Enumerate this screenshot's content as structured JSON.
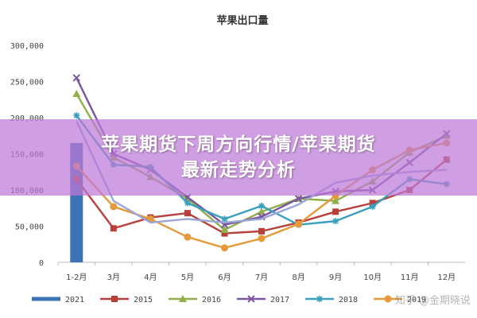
{
  "chart_data": {
    "type": "line",
    "title": "苹果出口量",
    "categories": [
      "1-2月",
      "3月",
      "4月",
      "5月",
      "6月",
      "7月",
      "8月",
      "9月",
      "10月",
      "11月",
      "12月"
    ],
    "ylim": [
      0,
      300000
    ],
    "yticks": [
      "0",
      "50,000",
      "100,000",
      "150,000",
      "200,000",
      "250,000",
      "300,000"
    ],
    "ytick_values": [
      0,
      50000,
      100000,
      150000,
      200000,
      250000,
      300000
    ],
    "grid": false,
    "legend_position": "bottom",
    "series": [
      {
        "name": "2021",
        "render": "bar",
        "color": "#3d73b5",
        "values": [
          165000,
          null,
          null,
          null,
          null,
          null,
          null,
          null,
          null,
          null,
          null
        ]
      },
      {
        "name": "2015",
        "color": "#b8403a",
        "marker": "square",
        "values": [
          115000,
          47000,
          62000,
          68000,
          40000,
          43000,
          55000,
          70000,
          82000,
          100000,
          142000
        ]
      },
      {
        "name": "2016",
        "color": "#8fb04a",
        "marker": "triangle",
        "values": [
          233000,
          145000,
          118000,
          88000,
          45000,
          70000,
          88000,
          85000,
          112000,
          152000,
          175000
        ]
      },
      {
        "name": "2017",
        "color": "#7a55a0",
        "marker": "x",
        "values": [
          255000,
          150000,
          128000,
          90000,
          52000,
          63000,
          88000,
          98000,
          100000,
          138000,
          178000
        ]
      },
      {
        "name": "2018",
        "color": "#3aa0bd",
        "marker": "star",
        "values": [
          203000,
          135000,
          132000,
          82000,
          60000,
          78000,
          52000,
          57000,
          77000,
          115000,
          108000
        ]
      },
      {
        "name": "2019",
        "color": "#e59a3a",
        "marker": "circle",
        "values": [
          133000,
          77000,
          60000,
          35000,
          20000,
          33000,
          53000,
          92000,
          128000,
          155000,
          165000
        ]
      },
      {
        "name": "",
        "color": "#9aa6d8",
        "marker": "none",
        "values": [
          195000,
          85000,
          55000,
          60000,
          55000,
          60000,
          80000,
          110000,
          120000,
          125000,
          128000
        ]
      }
    ]
  },
  "legend": [
    {
      "label": "2021",
      "color": "#3d73b5",
      "marker": "none"
    },
    {
      "label": "2015",
      "color": "#b8403a",
      "marker": "square"
    },
    {
      "label": "2016",
      "color": "#8fb04a",
      "marker": "triangle"
    },
    {
      "label": "2017",
      "color": "#7a55a0",
      "marker": "x"
    },
    {
      "label": "2018",
      "color": "#3aa0bd",
      "marker": "star"
    },
    {
      "label": "2019",
      "color": "#e59a3a",
      "marker": "circle"
    }
  ],
  "banner": {
    "line1": "苹果期货下周方向行情/苹果期货",
    "line2": "最新走势分析",
    "color": "#be78d7"
  },
  "watermark": "知乎 @金期晓说"
}
